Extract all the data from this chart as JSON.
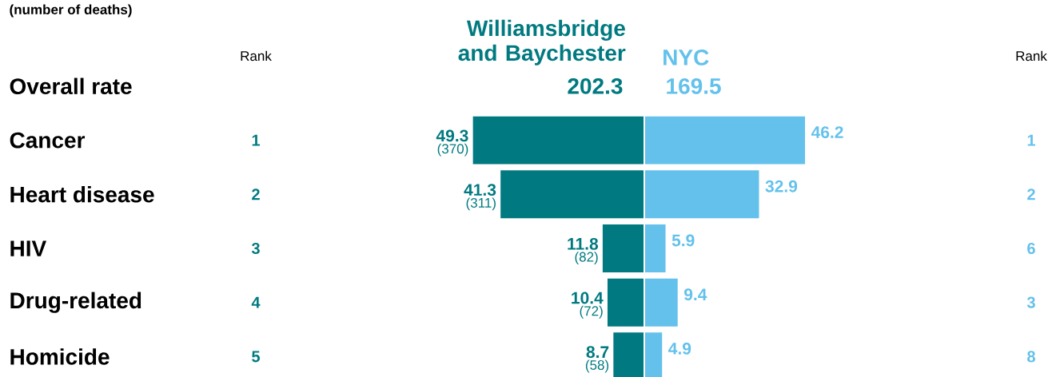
{
  "chart_data": [
    {
      "type": "bar",
      "orientation": "horizontal",
      "subtitle": "(number of deaths)",
      "categories": [
        "Overall rate",
        "Cancer",
        "Heart disease",
        "HIV",
        "Drug-related",
        "Homicide"
      ],
      "series": [
        {
          "name": "Williamsbridge and Baychester",
          "color": "#007a80",
          "values": [
            null,
            49.3,
            41.3,
            11.8,
            10.4,
            8.7
          ],
          "value_labels": [
            "202.3",
            "49.3",
            "41.3",
            "11.8",
            "10.4",
            "8.7"
          ]
        }
      ],
      "annotations": [
        "Rank",
        "1",
        "2",
        "3",
        "4",
        "5",
        {
          "text": "(370)",
          "x": 49.3,
          "y": "Cancer"
        },
        {
          "text": "(311)",
          "x": 41.3,
          "y": "Heart disease"
        },
        {
          "text": "(82)",
          "x": 11.8,
          "y": "HIV"
        },
        {
          "text": "(72)",
          "x": 10.4,
          "y": "Drug-related"
        },
        {
          "text": "(58)",
          "x": 8.7,
          "y": "Homicide"
        }
      ],
      "legend": false
    },
    {
      "type": "bar",
      "orientation": "horizontal",
      "categories": [
        null,
        null,
        null,
        null,
        null,
        null
      ],
      "series": [
        {
          "name": "NYC",
          "color": "#63c1ec",
          "values": [
            null,
            46.2,
            32.9,
            5.9,
            9.4,
            4.9
          ],
          "value_labels": [
            "169.5",
            "46.2",
            "32.9",
            "5.9",
            "9.4",
            "4.9"
          ]
        }
      ],
      "annotations": [
        "Rank",
        "1",
        "2",
        "6",
        "3",
        "8"
      ],
      "legend": false
    }
  ]
}
